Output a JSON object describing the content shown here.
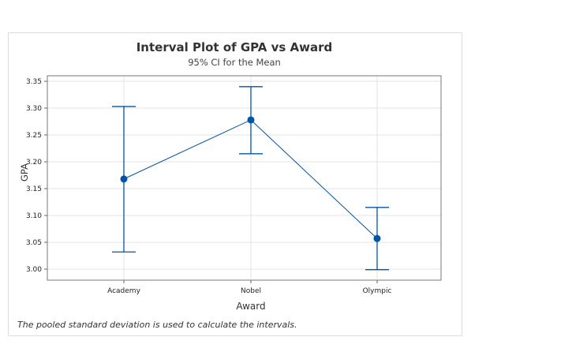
{
  "chart_data": {
    "type": "interval",
    "title": "Interval Plot of GPA vs Award",
    "subtitle": "95% CI for the Mean",
    "xlabel": "Award",
    "ylabel": "GPA",
    "categories": [
      "Academy",
      "Nobel",
      "Olympic"
    ],
    "series": [
      {
        "name": "Mean",
        "values": [
          3.168,
          3.278,
          3.057
        ]
      },
      {
        "name": "Upper 95% CI",
        "values": [
          3.303,
          3.34,
          3.115
        ]
      },
      {
        "name": "Lower 95% CI",
        "values": [
          3.032,
          3.215,
          2.999
        ]
      }
    ],
    "yticks": [
      "3.00",
      "3.05",
      "3.10",
      "3.15",
      "3.20",
      "3.25",
      "3.30",
      "3.35"
    ],
    "ylim": [
      2.975,
      3.36
    ],
    "grid": true,
    "legend": "none",
    "footnote": "The pooled standard deviation is used to calculate the intervals.",
    "color": "#0054a6"
  }
}
